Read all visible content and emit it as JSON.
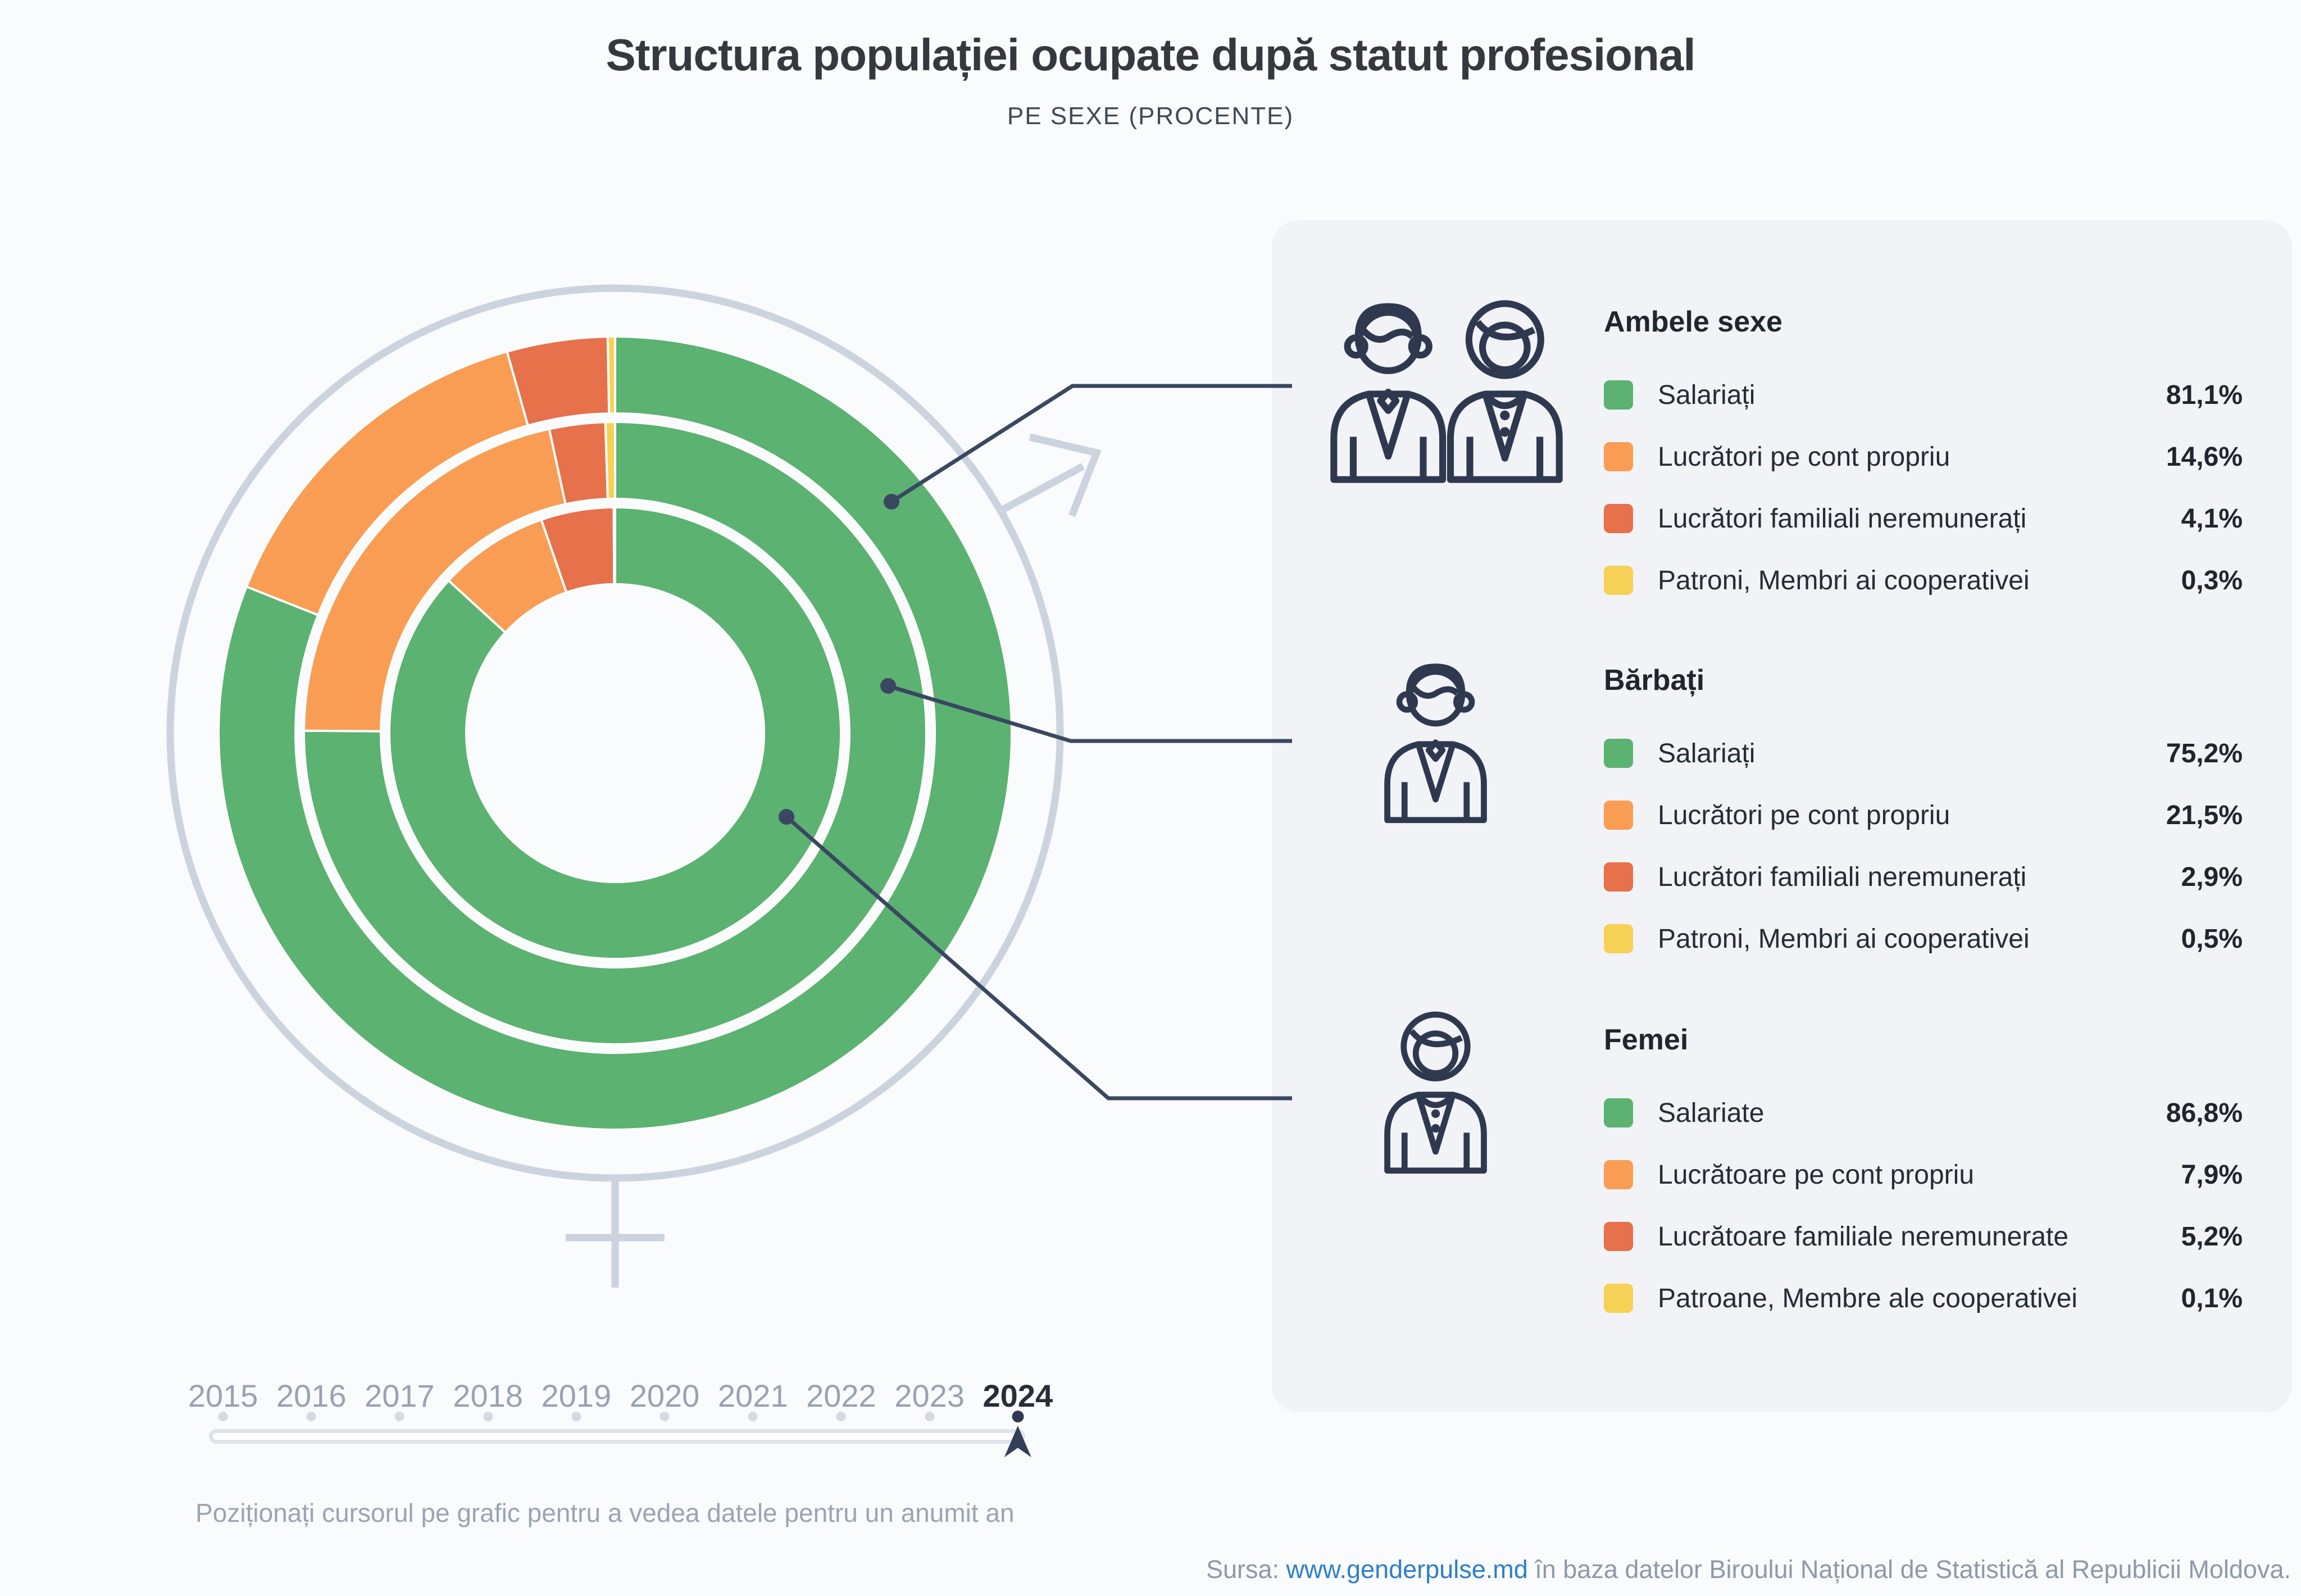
{
  "title": "Structura populației ocupate după statut profesional",
  "subtitle": "PE SEXE (PROCENTE)",
  "legend_groups": [
    {
      "heading": "Ambele sexe",
      "icon": "men-women-icon",
      "rows": [
        {
          "label": "Salariați",
          "value": "81,1%",
          "color": "#5BB271"
        },
        {
          "label": "Lucrători pe cont propriu",
          "value": "14,6%",
          "color": "#F99D54"
        },
        {
          "label": "Lucrători familiali neremunerați",
          "value": "4,1%",
          "color": "#E6714B"
        },
        {
          "label": "Patroni, Membri ai cooperativei",
          "value": "0,3%",
          "color": "#F7D155"
        }
      ]
    },
    {
      "heading": "Bărbați",
      "icon": "man-icon",
      "rows": [
        {
          "label": "Salariați",
          "value": "75,2%",
          "color": "#5BB271"
        },
        {
          "label": "Lucrători pe cont propriu",
          "value": "21,5%",
          "color": "#F99D54"
        },
        {
          "label": "Lucrători familiali neremunerați",
          "value": "2,9%",
          "color": "#E6714B"
        },
        {
          "label": "Patroni, Membri ai cooperativei",
          "value": "0,5%",
          "color": "#F7D155"
        }
      ]
    },
    {
      "heading": "Femei",
      "icon": "woman-icon",
      "rows": [
        {
          "label": "Salariate",
          "value": "86,8%",
          "color": "#5BB271"
        },
        {
          "label": "Lucrătoare pe cont propriu",
          "value": "7,9%",
          "color": "#F99D54"
        },
        {
          "label": "Lucrătoare familiale neremunerate",
          "value": "5,2%",
          "color": "#E6714B"
        },
        {
          "label": "Patroane, Membre ale cooperativei",
          "value": "0,1%",
          "color": "#F7D155"
        }
      ]
    }
  ],
  "chart_data": {
    "type": "donut-multi-ring",
    "categories": [
      "Salariați",
      "Lucrători pe cont propriu",
      "Lucrători familiali neremunerați",
      "Patroni, Membri ai cooperativei"
    ],
    "colors": [
      "#5BB271",
      "#F99D54",
      "#E6714B",
      "#F7D155"
    ],
    "rings": [
      {
        "name": "Ambele sexe",
        "position": "outer",
        "values": [
          81.1,
          14.6,
          4.1,
          0.3
        ]
      },
      {
        "name": "Bărbați",
        "position": "middle",
        "values": [
          75.2,
          21.5,
          2.9,
          0.5
        ]
      },
      {
        "name": "Femei",
        "position": "inner",
        "values": [
          86.8,
          7.9,
          5.2,
          0.1
        ]
      }
    ],
    "start_angle_deg": 0,
    "direction": "clockwise",
    "decoration": "combined male-female gender symbol around donut",
    "year_shown": "2024"
  },
  "timeline": {
    "years": [
      "2015",
      "2016",
      "2017",
      "2018",
      "2019",
      "2020",
      "2021",
      "2022",
      "2023",
      "2024"
    ],
    "selected": "2024",
    "instruction": "Poziționați cursorul pe grafic pentru a vedea datele pentru un anumit an"
  },
  "source": {
    "prefix": "Sursa: ",
    "link": "www.genderpulse.md",
    "suffix": " în baza datelor Biroului Național de Statistică al Republicii Moldova."
  }
}
